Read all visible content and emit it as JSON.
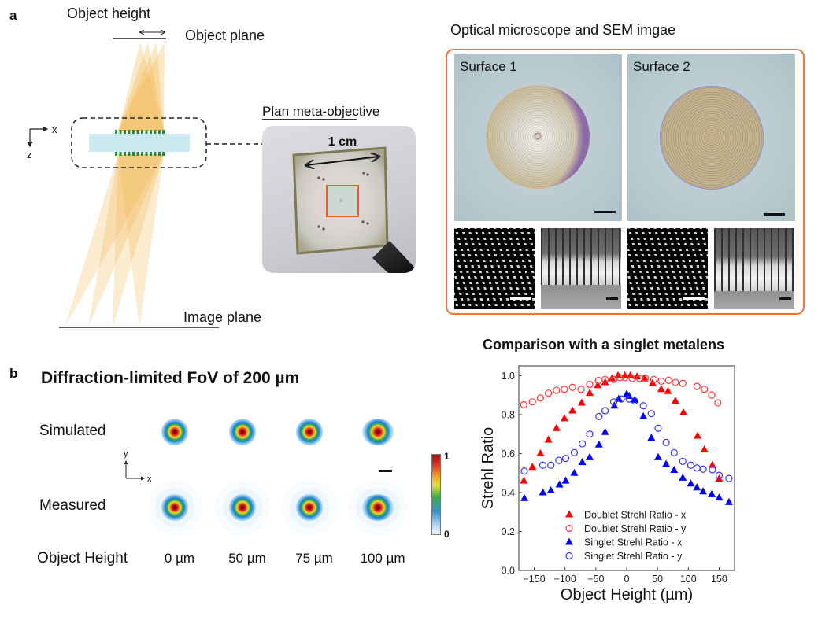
{
  "panel_a": {
    "label": "a",
    "diagram": {
      "object_height_label": "Object height",
      "object_plane_label": "Object plane",
      "image_plane_label": "Image plane",
      "axis_x": "x",
      "axis_z": "z"
    },
    "photo": {
      "title": "Plan meta-objective",
      "scale_label": "1 cm"
    },
    "microscope": {
      "title": "Optical microscope and SEM imgae",
      "surfaces": [
        {
          "label": "Surface 1"
        },
        {
          "label": "Surface 2"
        }
      ]
    }
  },
  "panel_b": {
    "label": "b",
    "title": "Diffraction-limited FoV of 200 µm",
    "row_labels": [
      "Simulated",
      "Measured"
    ],
    "axis_x": "x",
    "axis_y": "y",
    "object_height_label": "Object Height",
    "columns": [
      "0 µm",
      "50 µm",
      "75 µm",
      "100 µm"
    ],
    "colorbar": {
      "max_label": "1",
      "min_label": "0"
    }
  },
  "colors": {
    "frame": "#e8773c",
    "beam": "#f2b652",
    "lens": "#cde9f2",
    "meta_atoms": "#1f8a3c",
    "highlight_square": "#f05a22",
    "doublet": "#ff0000",
    "singlet": "#0000ff"
  },
  "chart_data": {
    "type": "scatter",
    "title": "Comparison with a singlet metalens",
    "xlabel": "Object Height (µm)",
    "ylabel": "Strehl Ratio",
    "xlim": [
      -175,
      175
    ],
    "ylim": [
      0,
      1.05
    ],
    "xticks": [
      -150,
      -100,
      -50,
      0,
      50,
      100,
      150
    ],
    "xtick_labels": [
      "−150",
      "−100",
      "−50",
      "0",
      "50",
      "100",
      "150"
    ],
    "yticks": [
      0,
      0.2,
      0.4,
      0.6,
      0.8,
      1.0
    ],
    "ytick_labels": [
      "0.0",
      "0.2",
      "0.4",
      "0.6",
      "0.8",
      "1.0"
    ],
    "grid": false,
    "legend_position": "bottom-left",
    "series": [
      {
        "name": "Doublet Strehl Ratio - x",
        "marker": "filled-triangle",
        "color": "#ff0000",
        "points": [
          [
            -167,
            0.46
          ],
          [
            -153,
            0.53
          ],
          [
            -140,
            0.6
          ],
          [
            -127,
            0.67
          ],
          [
            -114,
            0.73
          ],
          [
            -101,
            0.78
          ],
          [
            -88,
            0.82
          ],
          [
            -73,
            0.86
          ],
          [
            -60,
            0.91
          ],
          [
            -47,
            0.95
          ],
          [
            -35,
            0.965
          ],
          [
            -24,
            0.985
          ],
          [
            -14,
            1.0
          ],
          [
            -3,
            1.0
          ],
          [
            6,
            1.0
          ],
          [
            17,
            0.995
          ],
          [
            29,
            0.985
          ],
          [
            42,
            0.96
          ],
          [
            56,
            0.93
          ],
          [
            67,
            0.92
          ],
          [
            79,
            0.87
          ],
          [
            92,
            0.81
          ],
          [
            115,
            0.69
          ],
          [
            126,
            0.62
          ],
          [
            139,
            0.54
          ],
          [
            150,
            0.47
          ]
        ]
      },
      {
        "name": "Doublet Strehl Ratio - y",
        "marker": "open-circle",
        "color": "#ff3333",
        "points": [
          [
            -167,
            0.85
          ],
          [
            -153,
            0.865
          ],
          [
            -140,
            0.885
          ],
          [
            -127,
            0.91
          ],
          [
            -114,
            0.925
          ],
          [
            -101,
            0.93
          ],
          [
            -88,
            0.94
          ],
          [
            -74,
            0.93
          ],
          [
            -60,
            0.955
          ],
          [
            -46,
            0.975
          ],
          [
            -35,
            0.98
          ],
          [
            -21,
            0.98
          ],
          [
            -11,
            0.99
          ],
          [
            -3,
            0.99
          ],
          [
            9,
            0.985
          ],
          [
            21,
            0.985
          ],
          [
            30,
            0.988
          ],
          [
            44,
            0.98
          ],
          [
            56,
            0.972
          ],
          [
            68,
            0.976
          ],
          [
            79,
            0.965
          ],
          [
            91,
            0.96
          ],
          [
            114,
            0.945
          ],
          [
            126,
            0.93
          ],
          [
            138,
            0.9
          ],
          [
            148,
            0.86
          ]
        ]
      },
      {
        "name": "Singlet Strehl Ratio - x",
        "marker": "filled-triangle",
        "color": "#0000ff",
        "points": [
          [
            -166,
            0.37
          ],
          [
            -136,
            0.4
          ],
          [
            -123,
            0.41
          ],
          [
            -109,
            0.44
          ],
          [
            -99,
            0.46
          ],
          [
            -85,
            0.5
          ],
          [
            -72,
            0.555
          ],
          [
            -60,
            0.58
          ],
          [
            -45,
            0.645
          ],
          [
            -35,
            0.71
          ],
          [
            -20,
            0.845
          ],
          [
            -13,
            0.88
          ],
          [
            0,
            0.905
          ],
          [
            4,
            0.895
          ],
          [
            13,
            0.875
          ],
          [
            27,
            0.79
          ],
          [
            40,
            0.68
          ],
          [
            51,
            0.58
          ],
          [
            64,
            0.545
          ],
          [
            77,
            0.515
          ],
          [
            91,
            0.475
          ],
          [
            104,
            0.445
          ],
          [
            114,
            0.425
          ],
          [
            124,
            0.405
          ],
          [
            138,
            0.39
          ],
          [
            150,
            0.373
          ],
          [
            166,
            0.35
          ]
        ]
      },
      {
        "name": "Singlet Strehl Ratio - y",
        "marker": "open-circle",
        "color": "#3333ff",
        "points": [
          [
            -166,
            0.51
          ],
          [
            -136,
            0.54
          ],
          [
            -123,
            0.54
          ],
          [
            -110,
            0.565
          ],
          [
            -99,
            0.575
          ],
          [
            -85,
            0.605
          ],
          [
            -72,
            0.65
          ],
          [
            -60,
            0.7
          ],
          [
            -45,
            0.79
          ],
          [
            -35,
            0.82
          ],
          [
            -21,
            0.865
          ],
          [
            -9,
            0.88
          ],
          [
            4,
            0.88
          ],
          [
            13,
            0.87
          ],
          [
            27,
            0.845
          ],
          [
            40,
            0.805
          ],
          [
            51,
            0.73
          ],
          [
            64,
            0.657
          ],
          [
            77,
            0.604
          ],
          [
            91,
            0.56
          ],
          [
            104,
            0.54
          ],
          [
            114,
            0.526
          ],
          [
            124,
            0.52
          ],
          [
            139,
            0.517
          ],
          [
            150,
            0.488
          ],
          [
            166,
            0.472
          ]
        ]
      }
    ]
  }
}
